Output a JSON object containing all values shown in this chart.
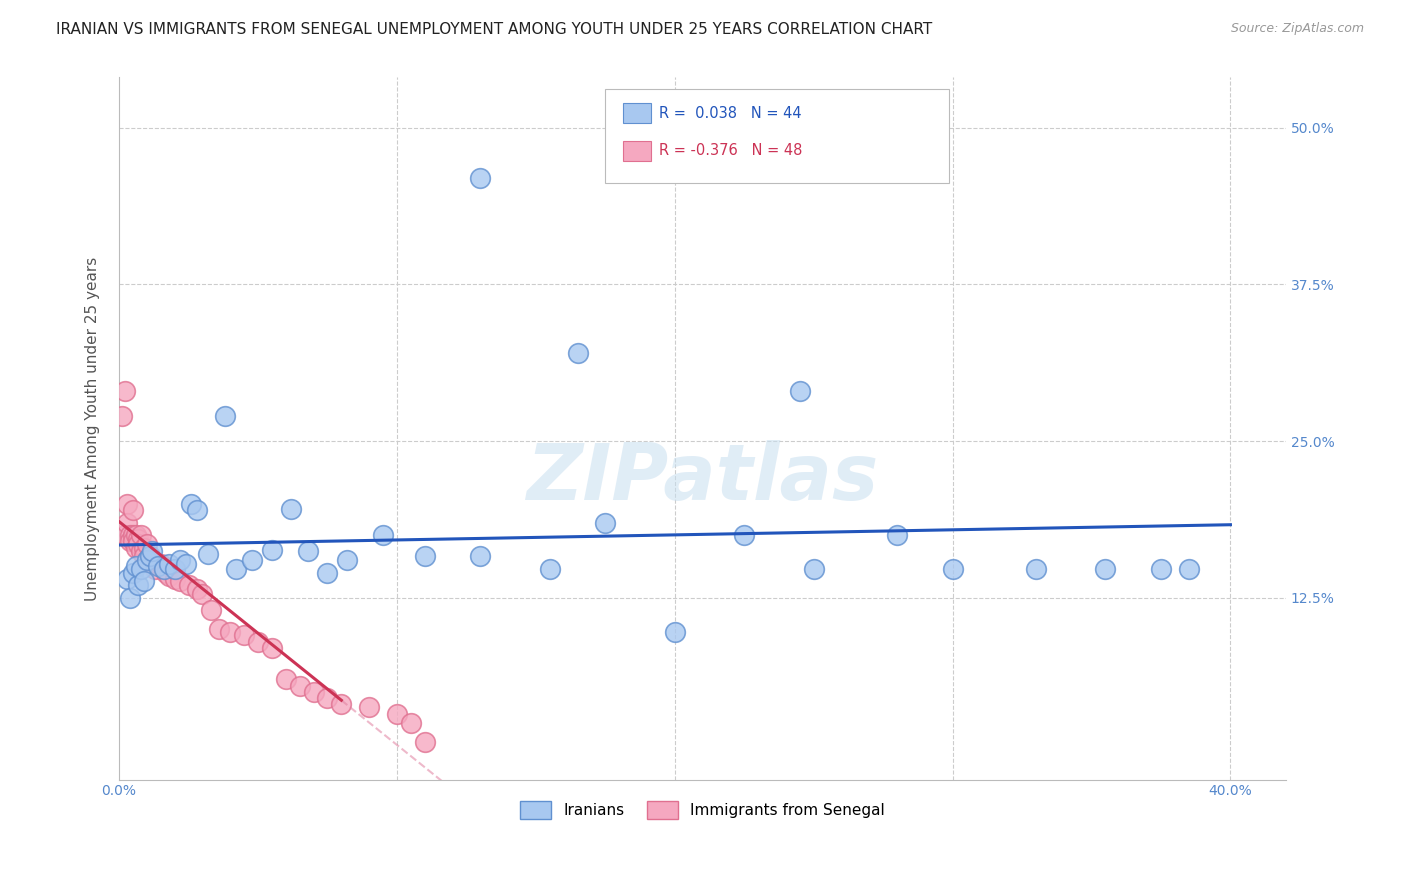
{
  "title": "IRANIAN VS IMMIGRANTS FROM SENEGAL UNEMPLOYMENT AMONG YOUTH UNDER 25 YEARS CORRELATION CHART",
  "source": "Source: ZipAtlas.com",
  "ylabel": "Unemployment Among Youth under 25 years",
  "xlim": [
    0.0,
    0.42
  ],
  "ylim": [
    -0.02,
    0.54
  ],
  "plot_xlim": [
    0.0,
    0.4
  ],
  "plot_ylim": [
    0.0,
    0.52
  ],
  "watermark": "ZIPatlas",
  "dot_size": 200,
  "blue_line_color": "#2255bb",
  "pink_line_color": "#cc3355",
  "background_color": "#ffffff",
  "grid_color": "#cccccc",
  "iranians_x": [
    0.003,
    0.004,
    0.005,
    0.006,
    0.007,
    0.008,
    0.009,
    0.01,
    0.011,
    0.012,
    0.014,
    0.016,
    0.018,
    0.02,
    0.022,
    0.024,
    0.026,
    0.028,
    0.032,
    0.038,
    0.042,
    0.048,
    0.055,
    0.062,
    0.068,
    0.075,
    0.082,
    0.095,
    0.11,
    0.13,
    0.155,
    0.175,
    0.2,
    0.225,
    0.25,
    0.28,
    0.3,
    0.33,
    0.355,
    0.375,
    0.385,
    0.165,
    0.245,
    0.13
  ],
  "iranians_y": [
    0.14,
    0.125,
    0.145,
    0.15,
    0.135,
    0.148,
    0.138,
    0.155,
    0.158,
    0.162,
    0.15,
    0.148,
    0.152,
    0.148,
    0.155,
    0.152,
    0.2,
    0.195,
    0.16,
    0.27,
    0.148,
    0.155,
    0.163,
    0.196,
    0.162,
    0.145,
    0.155,
    0.175,
    0.158,
    0.158,
    0.148,
    0.185,
    0.098,
    0.175,
    0.148,
    0.175,
    0.148,
    0.148,
    0.148,
    0.148,
    0.148,
    0.32,
    0.29,
    0.46
  ],
  "senegal_x": [
    0.001,
    0.002,
    0.002,
    0.003,
    0.003,
    0.004,
    0.004,
    0.005,
    0.005,
    0.005,
    0.006,
    0.006,
    0.007,
    0.007,
    0.008,
    0.008,
    0.009,
    0.009,
    0.01,
    0.01,
    0.011,
    0.012,
    0.013,
    0.014,
    0.015,
    0.016,
    0.017,
    0.018,
    0.02,
    0.022,
    0.025,
    0.028,
    0.03,
    0.033,
    0.036,
    0.04,
    0.045,
    0.05,
    0.055,
    0.06,
    0.065,
    0.07,
    0.075,
    0.08,
    0.09,
    0.1,
    0.105,
    0.11
  ],
  "senegal_y": [
    0.27,
    0.175,
    0.29,
    0.2,
    0.185,
    0.175,
    0.17,
    0.195,
    0.175,
    0.17,
    0.175,
    0.165,
    0.172,
    0.168,
    0.175,
    0.162,
    0.165,
    0.158,
    0.168,
    0.155,
    0.158,
    0.155,
    0.148,
    0.152,
    0.152,
    0.148,
    0.145,
    0.142,
    0.14,
    0.138,
    0.135,
    0.132,
    0.128,
    0.115,
    0.1,
    0.098,
    0.095,
    0.09,
    0.085,
    0.06,
    0.055,
    0.05,
    0.045,
    0.04,
    0.038,
    0.032,
    0.025,
    0.01
  ]
}
